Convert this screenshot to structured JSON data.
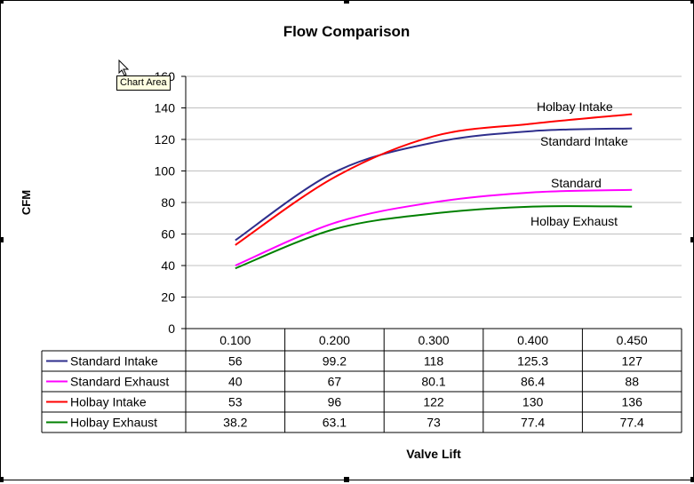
{
  "tooltip": "Chart Area",
  "chart_data": {
    "type": "line",
    "title": "Flow Comparison",
    "xlabel": "Valve Lift",
    "ylabel": "CFM",
    "ylim": [
      0,
      160
    ],
    "yticks": [
      0,
      20,
      40,
      60,
      80,
      100,
      120,
      140,
      160
    ],
    "categories": [
      "0.100",
      "0.200",
      "0.300",
      "0.400",
      "0.450"
    ],
    "grid": true,
    "legend": "data-table",
    "series": [
      {
        "name": "Standard Intake",
        "values": [
          56,
          99.2,
          118,
          125.3,
          127
        ],
        "color": "#2e2e8c"
      },
      {
        "name": "Standard Exhaust",
        "values": [
          40,
          67,
          80.1,
          86.4,
          88
        ],
        "color": "#ff00ff"
      },
      {
        "name": "Holbay Intake",
        "values": [
          53,
          96,
          122,
          130,
          136
        ],
        "color": "#ff0000"
      },
      {
        "name": "Holbay Exhaust",
        "values": [
          38.2,
          63.1,
          73,
          77.4,
          77.4
        ],
        "color": "#008000"
      }
    ],
    "table_values": [
      [
        "56",
        "99.2",
        "118",
        "125.3",
        "127"
      ],
      [
        "40",
        "67",
        "80.1",
        "86.4",
        "88"
      ],
      [
        "53",
        "96",
        "122",
        "130",
        "136"
      ],
      [
        "38.2",
        "63.1",
        "73",
        "77.4",
        "77.4"
      ]
    ],
    "annotations": [
      "Holbay Intake",
      "Standard Intake",
      "Standard",
      "Holbay Exhaust"
    ]
  }
}
